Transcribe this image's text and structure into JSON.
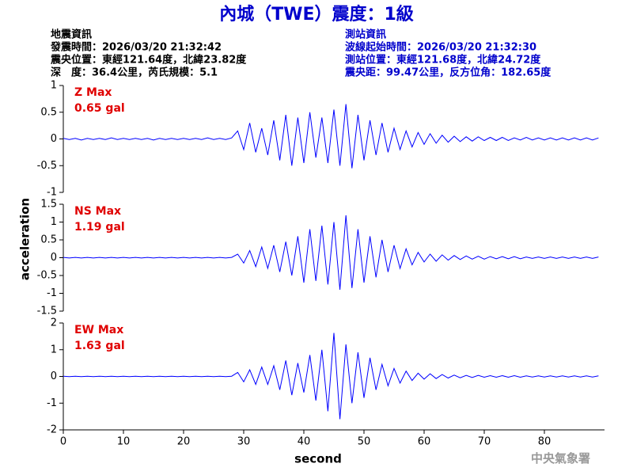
{
  "header": {
    "title": "內城（TWE）震度：1級",
    "left_info": [
      "地震資訊",
      "發震時間：2026/03/20 21:32:42",
      "震央位置：東經121.64度，北緯23.82度",
      "深　度：36.4公里，芮氏規模：5.1"
    ],
    "right_info": [
      "測站資訊",
      "波線起始時間：2026/03/20 21:32:30",
      "測站位置：東經121.68度，北緯24.72度",
      "震央距：99.47公里，反方位角：182.65度"
    ],
    "y_axis_label": "acceleration",
    "footer": "中央氣象署"
  },
  "chart_data": [
    {
      "type": "line",
      "annotation": [
        "Z Max",
        "0.65 gal"
      ],
      "color": "#0000ff",
      "xlim": [
        0,
        90
      ],
      "ylim": [
        -1,
        1
      ],
      "yticks": [
        -1,
        -0.5,
        0,
        0.5,
        1
      ],
      "x": [
        0,
        1,
        2,
        3,
        4,
        5,
        6,
        7,
        8,
        9,
        10,
        11,
        12,
        13,
        14,
        15,
        16,
        17,
        18,
        19,
        20,
        21,
        22,
        23,
        24,
        25,
        26,
        27,
        28,
        29,
        30,
        31,
        32,
        33,
        34,
        35,
        36,
        37,
        38,
        39,
        40,
        41,
        42,
        43,
        44,
        45,
        46,
        47,
        48,
        49,
        50,
        51,
        52,
        53,
        54,
        55,
        56,
        57,
        58,
        59,
        60,
        61,
        62,
        63,
        64,
        65,
        66,
        67,
        68,
        69,
        70,
        71,
        72,
        73,
        74,
        75,
        76,
        77,
        78,
        79,
        80,
        81,
        82,
        83,
        84,
        85,
        86,
        87,
        88,
        89
      ],
      "values": [
        0.01,
        -0.01,
        0.01,
        -0.02,
        0.01,
        -0.01,
        0.01,
        -0.01,
        0.02,
        -0.01,
        0.01,
        -0.01,
        0.01,
        -0.01,
        0.01,
        -0.02,
        0.01,
        -0.01,
        0.01,
        -0.01,
        0.01,
        -0.01,
        0.01,
        -0.01,
        0.02,
        -0.01,
        0.01,
        -0.01,
        0.02,
        0.15,
        -0.2,
        0.3,
        -0.25,
        0.2,
        -0.3,
        0.35,
        -0.4,
        0.45,
        -0.5,
        0.4,
        -0.45,
        0.5,
        -0.35,
        0.4,
        -0.45,
        0.55,
        -0.5,
        0.65,
        -0.55,
        0.45,
        -0.4,
        0.35,
        -0.3,
        0.3,
        -0.25,
        0.2,
        -0.2,
        0.15,
        -0.15,
        0.12,
        -0.1,
        0.1,
        -0.08,
        0.07,
        -0.06,
        0.05,
        -0.05,
        0.04,
        -0.04,
        0.04,
        -0.03,
        0.03,
        -0.03,
        0.03,
        -0.03,
        0.02,
        -0.02,
        0.03,
        -0.02,
        0.02,
        -0.02,
        0.02,
        -0.02,
        0.02,
        -0.02,
        0.02,
        -0.02,
        0.02,
        -0.02,
        0.02
      ]
    },
    {
      "type": "line",
      "annotation": [
        "NS Max",
        "1.19 gal"
      ],
      "color": "#0000ff",
      "xlim": [
        0,
        90
      ],
      "ylim": [
        -1.5,
        1.5
      ],
      "yticks": [
        -1.5,
        -1,
        -0.5,
        0,
        0.5,
        1,
        1.5
      ],
      "x": [
        0,
        1,
        2,
        3,
        4,
        5,
        6,
        7,
        8,
        9,
        10,
        11,
        12,
        13,
        14,
        15,
        16,
        17,
        18,
        19,
        20,
        21,
        22,
        23,
        24,
        25,
        26,
        27,
        28,
        29,
        30,
        31,
        32,
        33,
        34,
        35,
        36,
        37,
        38,
        39,
        40,
        41,
        42,
        43,
        44,
        45,
        46,
        47,
        48,
        49,
        50,
        51,
        52,
        53,
        54,
        55,
        56,
        57,
        58,
        59,
        60,
        61,
        62,
        63,
        64,
        65,
        66,
        67,
        68,
        69,
        70,
        71,
        72,
        73,
        74,
        75,
        76,
        77,
        78,
        79,
        80,
        81,
        82,
        83,
        84,
        85,
        86,
        87,
        88,
        89
      ],
      "values": [
        0.01,
        -0.01,
        0.01,
        -0.01,
        0.01,
        -0.01,
        0.01,
        -0.01,
        0.01,
        -0.01,
        0.01,
        -0.01,
        0.01,
        -0.01,
        0.01,
        -0.01,
        0.01,
        -0.01,
        0.01,
        -0.01,
        0.01,
        -0.01,
        0.01,
        -0.01,
        0.01,
        -0.01,
        0.01,
        -0.01,
        0.01,
        0.1,
        -0.15,
        0.2,
        -0.25,
        0.3,
        -0.3,
        0.35,
        -0.4,
        0.45,
        -0.5,
        0.6,
        -0.7,
        0.8,
        -0.65,
        0.9,
        -0.75,
        1.0,
        -0.9,
        1.19,
        -0.85,
        0.8,
        -0.7,
        0.6,
        -0.55,
        0.5,
        -0.4,
        0.35,
        -0.3,
        0.25,
        -0.2,
        0.15,
        -0.12,
        0.1,
        -0.1,
        0.08,
        -0.07,
        0.06,
        -0.05,
        0.05,
        -0.04,
        0.04,
        -0.04,
        0.03,
        -0.03,
        0.03,
        -0.03,
        0.03,
        -0.03,
        0.02,
        -0.02,
        0.02,
        -0.02,
        0.02,
        -0.02,
        0.02,
        -0.02,
        0.02,
        -0.02,
        0.02,
        -0.02,
        0.02
      ]
    },
    {
      "type": "line",
      "annotation": [
        "EW Max",
        "1.63 gal"
      ],
      "color": "#0000ff",
      "xlim": [
        0,
        90
      ],
      "ylim": [
        -2,
        2
      ],
      "yticks": [
        -2,
        -1,
        0,
        1,
        2
      ],
      "xticks": [
        0,
        10,
        20,
        30,
        40,
        50,
        60,
        70,
        80
      ],
      "xlabel": "second",
      "x": [
        0,
        1,
        2,
        3,
        4,
        5,
        6,
        7,
        8,
        9,
        10,
        11,
        12,
        13,
        14,
        15,
        16,
        17,
        18,
        19,
        20,
        21,
        22,
        23,
        24,
        25,
        26,
        27,
        28,
        29,
        30,
        31,
        32,
        33,
        34,
        35,
        36,
        37,
        38,
        39,
        40,
        41,
        42,
        43,
        44,
        45,
        46,
        47,
        48,
        49,
        50,
        51,
        52,
        53,
        54,
        55,
        56,
        57,
        58,
        59,
        60,
        61,
        62,
        63,
        64,
        65,
        66,
        67,
        68,
        69,
        70,
        71,
        72,
        73,
        74,
        75,
        76,
        77,
        78,
        79,
        80,
        81,
        82,
        83,
        84,
        85,
        86,
        87,
        88,
        89
      ],
      "values": [
        0.01,
        -0.01,
        0.01,
        -0.01,
        0.01,
        -0.01,
        0.01,
        -0.01,
        0.01,
        -0.01,
        0.01,
        -0.01,
        0.01,
        -0.01,
        0.01,
        -0.01,
        0.01,
        -0.01,
        0.01,
        -0.01,
        0.01,
        -0.01,
        0.01,
        -0.01,
        0.01,
        -0.01,
        0.01,
        -0.01,
        0.01,
        0.15,
        -0.2,
        0.25,
        -0.3,
        0.35,
        -0.3,
        0.4,
        -0.5,
        0.6,
        -0.7,
        0.5,
        -0.6,
        0.8,
        -0.9,
        1.0,
        -1.3,
        1.63,
        -1.6,
        1.2,
        -1.0,
        0.9,
        -0.8,
        0.7,
        -0.5,
        0.45,
        -0.35,
        0.3,
        -0.25,
        0.2,
        -0.15,
        0.12,
        -0.1,
        0.1,
        -0.08,
        0.07,
        -0.06,
        0.05,
        -0.05,
        0.04,
        -0.04,
        0.04,
        -0.03,
        0.03,
        -0.03,
        0.03,
        -0.03,
        0.03,
        -0.03,
        0.02,
        -0.02,
        0.02,
        -0.02,
        0.02,
        -0.02,
        0.02,
        -0.02,
        0.02,
        -0.02,
        0.02,
        -0.02,
        0.02
      ]
    }
  ]
}
